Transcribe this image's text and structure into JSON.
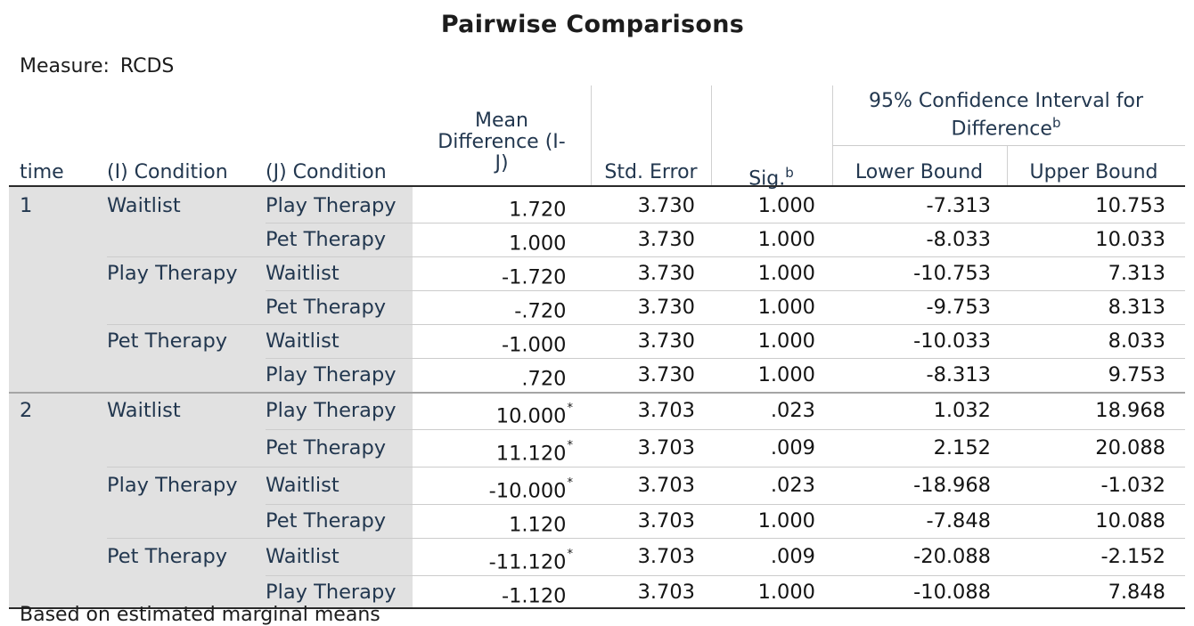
{
  "title": "Pairwise Comparisons",
  "measure": {
    "label": "Measure:",
    "value": "RCDS"
  },
  "headers": {
    "time": "time",
    "i_condition": "(I) Condition",
    "j_condition": "(J) Condition",
    "mean_diff_1": "Mean",
    "mean_diff_2": "Difference (I-",
    "mean_diff_3": "J)",
    "std_error": "Std. Error",
    "sig": "Sig.",
    "sig_sup": "b",
    "ci_title_1": "95% Confidence Interval for",
    "ci_title_2": "Difference",
    "ci_sup": "b",
    "lower": "Lower Bound",
    "upper": "Upper Bound"
  },
  "rows": [
    {
      "time": "1",
      "i": "Waitlist",
      "j": "Play Therapy",
      "md": "1.720",
      "star": "",
      "se": "3.730",
      "sig": "1.000",
      "lb": "-7.313",
      "ub": "10.753"
    },
    {
      "time": "",
      "i": "",
      "j": "Pet Therapy",
      "md": "1.000",
      "star": "",
      "se": "3.730",
      "sig": "1.000",
      "lb": "-8.033",
      "ub": "10.033"
    },
    {
      "time": "",
      "i": "Play Therapy",
      "j": "Waitlist",
      "md": "-1.720",
      "star": "",
      "se": "3.730",
      "sig": "1.000",
      "lb": "-10.753",
      "ub": "7.313"
    },
    {
      "time": "",
      "i": "",
      "j": "Pet Therapy",
      "md": "-.720",
      "star": "",
      "se": "3.730",
      "sig": "1.000",
      "lb": "-9.753",
      "ub": "8.313"
    },
    {
      "time": "",
      "i": "Pet Therapy",
      "j": "Waitlist",
      "md": "-1.000",
      "star": "",
      "se": "3.730",
      "sig": "1.000",
      "lb": "-10.033",
      "ub": "8.033"
    },
    {
      "time": "",
      "i": "",
      "j": "Play Therapy",
      "md": ".720",
      "star": "",
      "se": "3.730",
      "sig": "1.000",
      "lb": "-8.313",
      "ub": "9.753"
    },
    {
      "time": "2",
      "i": "Waitlist",
      "j": "Play Therapy",
      "md": "10.000",
      "star": "*",
      "se": "3.703",
      "sig": ".023",
      "lb": "1.032",
      "ub": "18.968"
    },
    {
      "time": "",
      "i": "",
      "j": "Pet Therapy",
      "md": "11.120",
      "star": "*",
      "se": "3.703",
      "sig": ".009",
      "lb": "2.152",
      "ub": "20.088"
    },
    {
      "time": "",
      "i": "Play Therapy",
      "j": "Waitlist",
      "md": "-10.000",
      "star": "*",
      "se": "3.703",
      "sig": ".023",
      "lb": "-18.968",
      "ub": "-1.032"
    },
    {
      "time": "",
      "i": "",
      "j": "Pet Therapy",
      "md": "1.120",
      "star": "",
      "se": "3.703",
      "sig": "1.000",
      "lb": "-7.848",
      "ub": "10.088"
    },
    {
      "time": "",
      "i": "Pet Therapy",
      "j": "Waitlist",
      "md": "-11.120",
      "star": "*",
      "se": "3.703",
      "sig": ".009",
      "lb": "-20.088",
      "ub": "-2.152"
    },
    {
      "time": "",
      "i": "",
      "j": "Play Therapy",
      "md": "-1.120",
      "star": "",
      "se": "3.703",
      "sig": "1.000",
      "lb": "-10.088",
      "ub": "7.848"
    }
  ],
  "footnote": "Based on estimated marginal means"
}
